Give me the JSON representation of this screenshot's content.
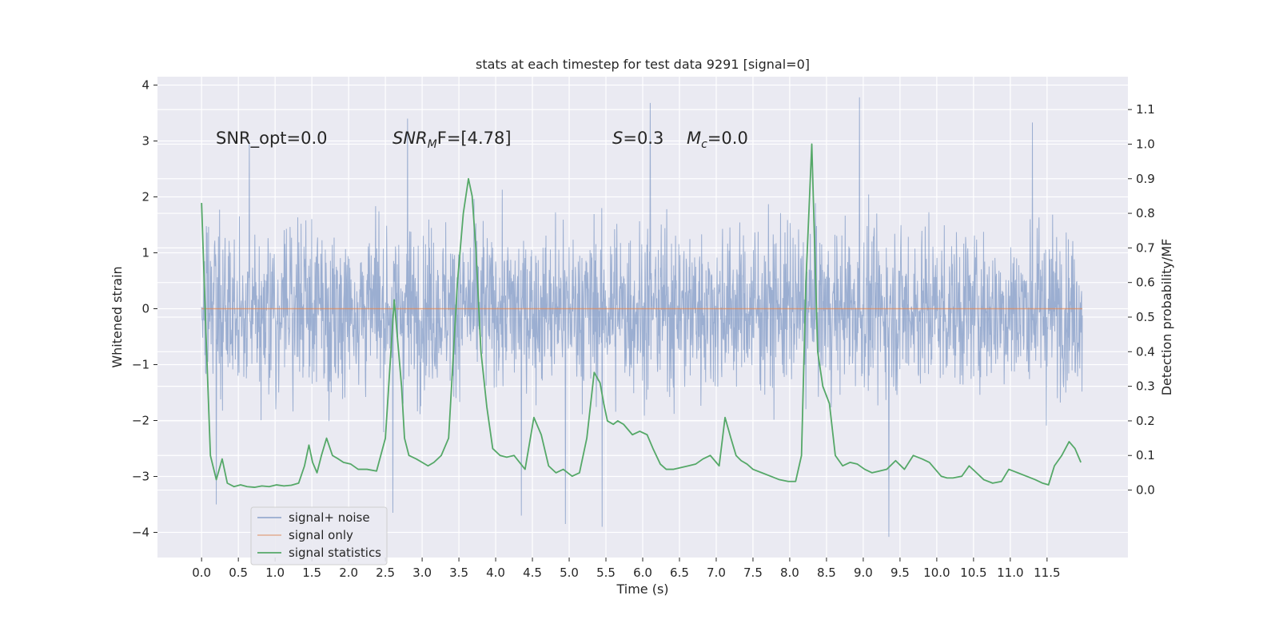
{
  "chart_data": {
    "type": "line",
    "title": "stats at each timestep for test data 9291 [signal=0]",
    "xlabel": "Time (s)",
    "ylabel_left": "Whitened strain",
    "ylabel_right": "Detection probability/MF",
    "xlim": [
      -0.6,
      12.6
    ],
    "ylim_left": [
      -4.45,
      4.15
    ],
    "ylim_right": [
      -0.195,
      1.195
    ],
    "xticks": [
      0.0,
      0.5,
      1.0,
      1.5,
      2.0,
      2.5,
      3.0,
      3.5,
      4.0,
      4.5,
      5.0,
      5.5,
      6.0,
      6.5,
      7.0,
      7.5,
      8.0,
      8.5,
      9.0,
      9.5,
      10.0,
      10.5,
      11.0,
      11.5
    ],
    "xtick_labels": [
      "0.0",
      "0.5",
      "1.0",
      "1.5",
      "2.0",
      "2.5",
      "3.0",
      "3.5",
      "4.0",
      "4.5",
      "5.0",
      "5.5",
      "6.0",
      "6.5",
      "7.0",
      "7.5",
      "8.0",
      "8.5",
      "9.0",
      "9.5",
      "10.0",
      "10.5",
      "11.0",
      "11.5"
    ],
    "yticks_left": [
      -4,
      -3,
      -2,
      -1,
      0,
      1,
      2,
      3,
      4
    ],
    "ytick_labels_left": [
      "−4",
      "−3",
      "−2",
      "−1",
      "0",
      "1",
      "2",
      "3",
      "4"
    ],
    "yticks_right": [
      0.0,
      0.1,
      0.2,
      0.3,
      0.4,
      0.5,
      0.6,
      0.7,
      0.8,
      0.9,
      1.0,
      1.1
    ],
    "ytick_labels_right": [
      "0.0",
      "0.1",
      "0.2",
      "0.3",
      "0.4",
      "0.5",
      "0.6",
      "0.7",
      "0.8",
      "0.9",
      "1.0",
      "1.1"
    ],
    "grid": true,
    "legend_position": "lower-left",
    "annotations": {
      "snr_opt": "SNR_opt=0.0",
      "snr_mf_main": "SNR",
      "snr_mf_sub": "M",
      "snr_mf_rest": "F=[4.78]",
      "s_var": "S",
      "s_value": "=0.3",
      "mc_main": "M",
      "mc_sub": "c",
      "mc_value": "=0.0"
    },
    "series": [
      {
        "name": "signal+ noise",
        "color": "#4c72b0",
        "axis": "left",
        "style": "dense noise trace",
        "x_range": [
          0.0,
          11.98
        ],
        "typical_band": [
          -1.5,
          1.5
        ],
        "extremes": {
          "max": [
            [
              0.65,
              2.95
            ],
            [
              2.8,
              3.4
            ],
            [
              6.1,
              3.68
            ],
            [
              8.95,
              3.78
            ],
            [
              11.3,
              3.33
            ]
          ],
          "min": [
            [
              0.2,
              -3.5
            ],
            [
              2.6,
              -3.65
            ],
            [
              4.35,
              -3.7
            ],
            [
              4.95,
              -3.85
            ],
            [
              5.45,
              -3.9
            ],
            [
              9.35,
              -4.08
            ]
          ]
        }
      },
      {
        "name": "signal only",
        "color": "#dd8452",
        "axis": "left",
        "x": [
          0.0,
          11.98
        ],
        "y": [
          0.0,
          0.0
        ]
      },
      {
        "name": "signal statistics",
        "color": "#55a868",
        "axis": "right",
        "x": [
          0.0,
          0.06,
          0.12,
          0.2,
          0.28,
          0.35,
          0.44,
          0.53,
          0.62,
          0.72,
          0.82,
          0.92,
          1.02,
          1.12,
          1.22,
          1.32,
          1.4,
          1.46,
          1.51,
          1.57,
          1.63,
          1.7,
          1.78,
          1.86,
          1.93,
          2.03,
          2.13,
          2.25,
          2.38,
          2.5,
          2.62,
          2.72,
          2.76,
          2.82,
          2.92,
          3.0,
          3.08,
          3.16,
          3.26,
          3.36,
          3.48,
          3.56,
          3.63,
          3.68,
          3.73,
          3.8,
          3.88,
          3.96,
          4.06,
          4.15,
          4.25,
          4.4,
          4.52,
          4.62,
          4.72,
          4.82,
          4.92,
          5.04,
          5.14,
          5.24,
          5.34,
          5.42,
          5.47,
          5.52,
          5.6,
          5.66,
          5.74,
          5.86,
          5.96,
          6.06,
          6.14,
          6.24,
          6.32,
          6.42,
          6.52,
          6.62,
          6.72,
          6.82,
          6.92,
          7.04,
          7.12,
          7.2,
          7.27,
          7.34,
          7.42,
          7.5,
          7.62,
          7.74,
          7.86,
          7.98,
          8.08,
          8.16,
          8.22,
          8.3,
          8.38,
          8.45,
          8.54,
          8.62,
          8.72,
          8.82,
          8.92,
          9.02,
          9.12,
          9.22,
          9.32,
          9.44,
          9.56,
          9.68,
          9.8,
          9.9,
          9.98,
          10.06,
          10.14,
          10.22,
          10.34,
          10.44,
          10.54,
          10.64,
          10.76,
          10.88,
          10.98,
          11.1,
          11.22,
          11.34,
          11.44,
          11.52,
          11.6,
          11.7,
          11.8,
          11.88,
          11.96
        ],
        "y": [
          0.83,
          0.45,
          0.1,
          0.03,
          0.09,
          0.02,
          0.01,
          0.015,
          0.01,
          0.008,
          0.012,
          0.01,
          0.015,
          0.012,
          0.014,
          0.02,
          0.07,
          0.13,
          0.08,
          0.05,
          0.1,
          0.15,
          0.1,
          0.09,
          0.08,
          0.075,
          0.06,
          0.06,
          0.055,
          0.15,
          0.55,
          0.3,
          0.15,
          0.1,
          0.09,
          0.08,
          0.07,
          0.08,
          0.1,
          0.15,
          0.6,
          0.8,
          0.9,
          0.85,
          0.7,
          0.4,
          0.24,
          0.12,
          0.1,
          0.095,
          0.1,
          0.06,
          0.21,
          0.16,
          0.07,
          0.05,
          0.06,
          0.04,
          0.05,
          0.15,
          0.34,
          0.31,
          0.25,
          0.2,
          0.19,
          0.2,
          0.19,
          0.16,
          0.17,
          0.16,
          0.12,
          0.075,
          0.06,
          0.06,
          0.065,
          0.07,
          0.075,
          0.09,
          0.1,
          0.07,
          0.21,
          0.15,
          0.1,
          0.085,
          0.075,
          0.06,
          0.05,
          0.04,
          0.03,
          0.025,
          0.025,
          0.1,
          0.6,
          1.0,
          0.4,
          0.3,
          0.25,
          0.1,
          0.07,
          0.08,
          0.075,
          0.06,
          0.05,
          0.055,
          0.06,
          0.085,
          0.06,
          0.1,
          0.09,
          0.08,
          0.06,
          0.04,
          0.035,
          0.035,
          0.04,
          0.07,
          0.05,
          0.03,
          0.02,
          0.025,
          0.06,
          0.05,
          0.04,
          0.03,
          0.02,
          0.015,
          0.07,
          0.1,
          0.14,
          0.12,
          0.08
        ]
      }
    ]
  }
}
